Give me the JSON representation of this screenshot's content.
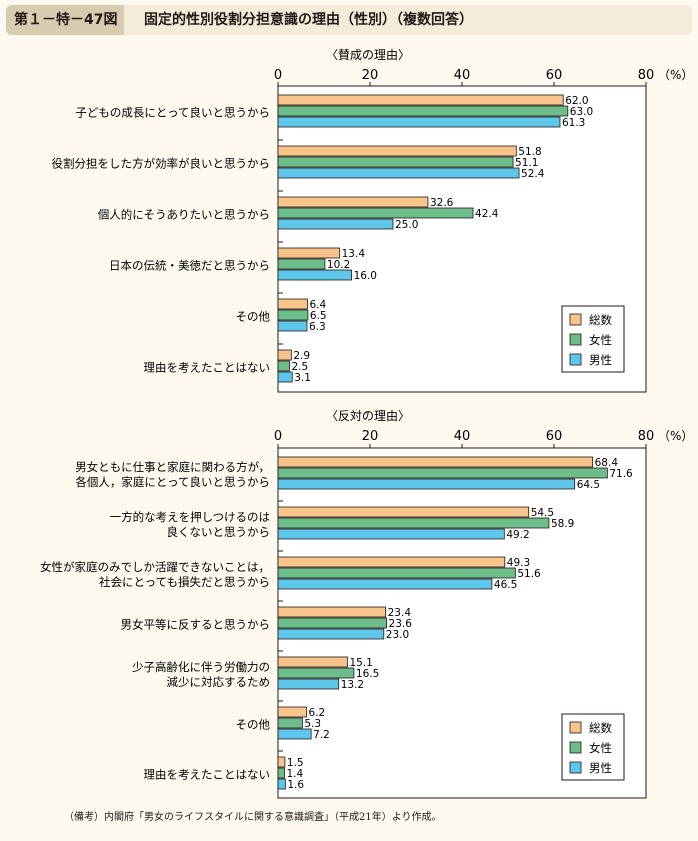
{
  "header": {
    "figure_number": "第１－特－47図",
    "title": "固定的性別役割分担意識の理由（性別）（複数回答）"
  },
  "note": "（備考）内閣府「男女のライフスタイルに関する意識調査」（平成21年）より作成。",
  "colors": {
    "total": "#f7c48c",
    "female": "#6dbd8a",
    "male": "#5ec6ea"
  },
  "chart_data": [
    {
      "type": "bar",
      "orientation": "horizontal",
      "subtitle": "〈賛成の理由〉",
      "xlim": [
        0,
        80
      ],
      "xticks": [
        "0",
        "20",
        "40",
        "60",
        "80"
      ],
      "unit": "（%）",
      "legend": [
        "総数",
        "女性",
        "男性"
      ],
      "legend_position": "bottom-right",
      "categories": [
        [
          "子どもの成長にとって良いと思うから"
        ],
        [
          "役割分担をした方が効率が良いと思うから"
        ],
        [
          "個人的にそうありたいと思うから"
        ],
        [
          "日本の伝統・美徳だと思うから"
        ],
        [
          "その他"
        ],
        [
          "理由を考えたことはない"
        ]
      ],
      "series": [
        {
          "name": "総数",
          "values": [
            62.0,
            51.8,
            32.6,
            13.4,
            6.4,
            2.9
          ]
        },
        {
          "name": "女性",
          "values": [
            63.0,
            51.1,
            42.4,
            10.2,
            6.5,
            2.5
          ]
        },
        {
          "name": "男性",
          "values": [
            61.3,
            52.4,
            25.0,
            16.0,
            6.3,
            3.1
          ]
        }
      ]
    },
    {
      "type": "bar",
      "orientation": "horizontal",
      "subtitle": "〈反対の理由〉",
      "xlim": [
        0,
        80
      ],
      "xticks": [
        "0",
        "20",
        "40",
        "60",
        "80"
      ],
      "unit": "（%）",
      "legend": [
        "総数",
        "女性",
        "男性"
      ],
      "legend_position": "bottom-right",
      "categories": [
        [
          "男女ともに仕事と家庭に関わる方が，",
          "各個人，家庭にとって良いと思うから"
        ],
        [
          "一方的な考えを押しつけるのは",
          "良くないと思うから"
        ],
        [
          "女性が家庭のみでしか活躍できないことは，",
          "社会にとっても損失だと思うから"
        ],
        [
          "男女平等に反すると思うから"
        ],
        [
          "少子高齢化に伴う労働力の",
          "減少に対応するため"
        ],
        [
          "その他"
        ],
        [
          "理由を考えたことはない"
        ]
      ],
      "series": [
        {
          "name": "総数",
          "values": [
            68.4,
            54.5,
            49.3,
            23.4,
            15.1,
            6.2,
            1.5
          ]
        },
        {
          "name": "女性",
          "values": [
            71.6,
            58.9,
            51.6,
            23.6,
            16.5,
            5.3,
            1.4
          ]
        },
        {
          "name": "男性",
          "values": [
            64.5,
            49.2,
            46.5,
            23.0,
            13.2,
            7.2,
            1.6
          ]
        }
      ]
    }
  ]
}
